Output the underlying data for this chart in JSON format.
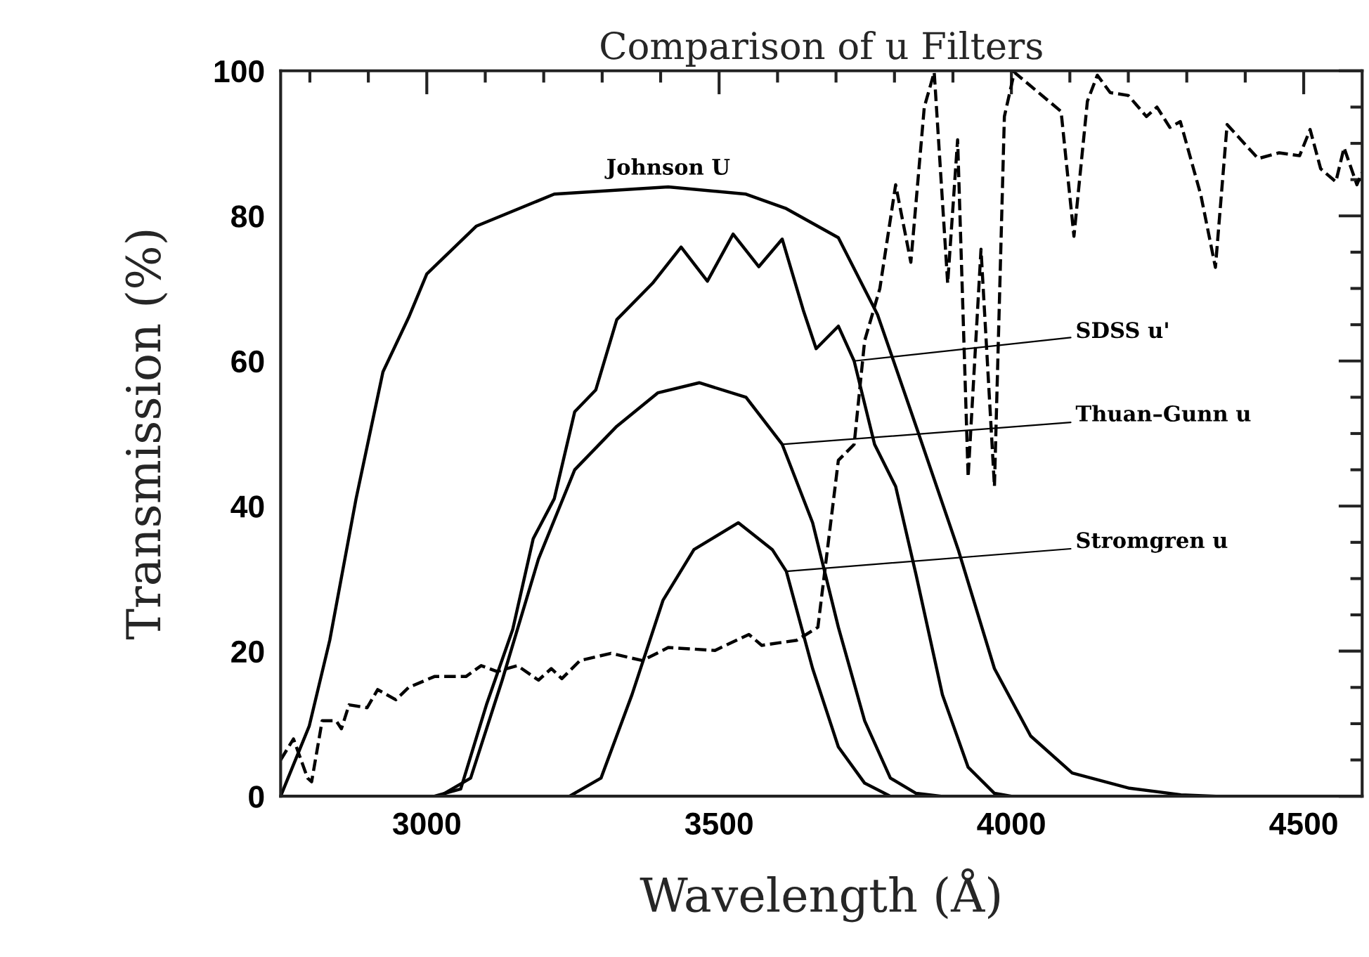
{
  "chart_data": {
    "type": "line",
    "title": "Comparison of u Filters",
    "xlabel": "Wavelength (Å)",
    "ylabel": "Transmission (%)",
    "xlim": [
      2750,
      4600
    ],
    "ylim": [
      0,
      100
    ],
    "xticks": [
      {
        "value": 2800,
        "label": null
      },
      {
        "value": 2900,
        "label": null
      },
      3000,
      {
        "value": 3100,
        "label": null
      },
      {
        "value": 3200,
        "label": null
      },
      {
        "value": 3300,
        "label": null
      },
      {
        "value": 3400,
        "label": null
      },
      3500,
      {
        "value": 3600,
        "label": null
      },
      {
        "value": 3700,
        "label": null
      },
      {
        "value": 3800,
        "label": null
      },
      {
        "value": 3900,
        "label": null
      },
      4000,
      {
        "value": 4100,
        "label": null
      },
      {
        "value": 4200,
        "label": null
      },
      {
        "value": 4300,
        "label": null
      },
      {
        "value": 4400,
        "label": null
      },
      4500
    ],
    "yticks": [
      0,
      {
        "value": 5,
        "label": null
      },
      {
        "value": 10,
        "label": null
      },
      {
        "value": 15,
        "label": null
      },
      20,
      {
        "value": 25,
        "label": null
      },
      {
        "value": 30,
        "label": null
      },
      {
        "value": 35,
        "label": null
      },
      40,
      {
        "value": 45,
        "label": null
      },
      {
        "value": 50,
        "label": null
      },
      {
        "value": 55,
        "label": null
      },
      60,
      {
        "value": 65,
        "label": null
      },
      {
        "value": 70,
        "label": null
      },
      {
        "value": 75,
        "label": null
      },
      80,
      {
        "value": 85,
        "label": null
      },
      {
        "value": 90,
        "label": null
      },
      {
        "value": 95,
        "label": null
      },
      100
    ],
    "grid": false,
    "legend": false,
    "marker": "none",
    "series": [
      {
        "name": "Johnson U",
        "color": "#000000",
        "line_style": "solid",
        "x": [
          2750,
          2799,
          2834,
          2879,
          2925,
          2969,
          3000,
          3085,
          3218,
          3413,
          3546,
          3615,
          3704,
          3771,
          3837,
          3909,
          3971,
          4033,
          4104,
          4202,
          4290,
          4350
        ],
        "values": [
          0,
          9.7,
          21.5,
          41,
          58.5,
          66,
          72,
          78.6,
          83,
          84,
          83,
          81,
          77,
          66.4,
          51,
          34,
          17.6,
          8.3,
          3.2,
          1.1,
          0.2,
          0
        ]
      },
      {
        "name": "SDSS u'",
        "color": "#000000",
        "line_style": "solid",
        "x": [
          3013,
          3058,
          3102,
          3147,
          3182,
          3218,
          3253,
          3289,
          3325,
          3386,
          3435,
          3480,
          3524,
          3568,
          3608,
          3644,
          3666,
          3704,
          3731,
          3766,
          3802,
          3837,
          3882,
          3926,
          3971,
          4000
        ],
        "values": [
          0,
          1,
          12.6,
          23,
          35.5,
          41,
          53,
          56,
          65.7,
          70.7,
          75.7,
          71,
          77.5,
          73,
          76.8,
          67,
          61.7,
          64.8,
          60,
          48.5,
          42.7,
          30.5,
          14,
          4,
          0.4,
          0
        ]
      },
      {
        "name": "Thuan–Gunn u",
        "color": "#000000",
        "line_style": "solid",
        "x": [
          3022,
          3075,
          3129,
          3191,
          3253,
          3325,
          3395,
          3466,
          3546,
          3608,
          3660,
          3704,
          3749,
          3793,
          3837,
          3880
        ],
        "values": [
          0,
          2.5,
          16,
          32.7,
          45,
          51,
          55.6,
          57,
          55,
          48.5,
          37.7,
          23.3,
          10.4,
          2.5,
          0.4,
          0
        ]
      },
      {
        "name": "Stromgren u",
        "color": "#000000",
        "line_style": "solid",
        "x": [
          3244,
          3298,
          3351,
          3404,
          3457,
          3533,
          3591,
          3615,
          3660,
          3704,
          3749,
          3793
        ],
        "values": [
          0,
          2.5,
          14,
          27,
          34,
          37.7,
          34,
          31,
          17.6,
          6.8,
          1.8,
          0
        ]
      },
      {
        "color": "#000000",
        "line_style": "dashed",
        "x": [
          2750,
          2772,
          2796,
          2803,
          2821,
          2845,
          2854,
          2867,
          2898,
          2916,
          2947,
          2969,
          3013,
          3067,
          3093,
          3120,
          3155,
          3191,
          3213,
          3231,
          3262,
          3315,
          3369,
          3413,
          3493,
          3551,
          3573,
          3633,
          3669,
          3704,
          3731,
          3749,
          3775,
          3802,
          3828,
          3851,
          3868,
          3891,
          3908,
          3926,
          3948,
          3971,
          3988,
          4005,
          4085,
          4107,
          4130,
          4147,
          4169,
          4200,
          4231,
          4249,
          4271,
          4289,
          4324,
          4349,
          4369,
          4422,
          4458,
          4493,
          4511,
          4529,
          4555,
          4569,
          4591,
          4600
        ],
        "values": [
          5,
          7.9,
          2.5,
          2,
          10.4,
          10.4,
          9.3,
          12.6,
          12.2,
          14.7,
          13.3,
          15,
          16.5,
          16.5,
          18,
          17.2,
          18,
          16,
          17.6,
          16.2,
          18.7,
          19.7,
          18.7,
          20.5,
          20.1,
          22.3,
          20.8,
          21.5,
          23.3,
          46.3,
          48.5,
          62.8,
          70,
          84.3,
          73.6,
          95,
          99.8,
          70.7,
          90.5,
          44,
          75.4,
          42.7,
          93.7,
          99.8,
          94.4,
          77.2,
          95.8,
          99.4,
          97,
          96.6,
          93.7,
          95,
          92.2,
          93,
          82.9,
          72.9,
          92.6,
          87.9,
          88.7,
          88.3,
          91.9,
          86.5,
          84.7,
          89.4,
          84.3,
          86
        ]
      }
    ]
  }
}
